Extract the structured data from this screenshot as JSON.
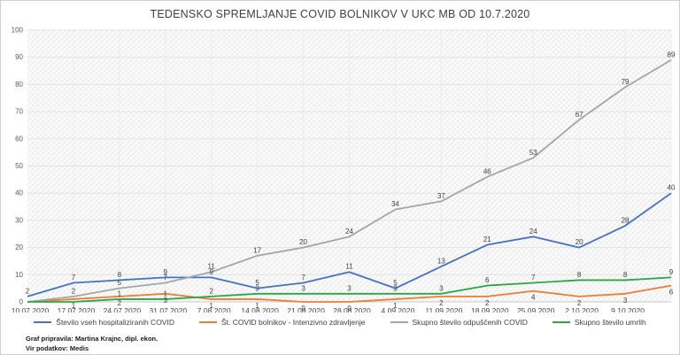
{
  "title": "TEDENSKO SPREMLJANJE COVID BOLNIKOV V UKC MB OD 10.7.2020",
  "footer": {
    "line1": "Graf pripravila: Martina Krajnc, dipl. ekon.",
    "line2": "Vir podatkov: Medis"
  },
  "colors": {
    "hospitalized": "#4472C4",
    "intensive": "#ED7D31",
    "discharged": "#A5A5A5",
    "deceased": "#2BA648",
    "grid": "#e3e3e3",
    "axis": "#c9c9c9",
    "tick_text": "#595959",
    "label_text": "#404040"
  },
  "chart_data": {
    "type": "line",
    "title": "TEDENSKO SPREMLJANJE COVID BOLNIKOV V UKC MB OD 10.7.2020",
    "categories": [
      "10.07.2020",
      "17.07.2020",
      "24.07.2020",
      "31.07.2020",
      "7.08.2020",
      "14.08.2020",
      "21.08.2020",
      "28.08.2020",
      "4.09.2020",
      "11.09.2020",
      "18.09.2020",
      "25.09.2020",
      "2.10.2020",
      "9.10.2020",
      ""
    ],
    "series": [
      {
        "name": "Število vseh hospitaliziranih COVID",
        "color": "#4472C4",
        "values": [
          2,
          7,
          8,
          9,
          9,
          5,
          7,
          11,
          5,
          13,
          21,
          24,
          20,
          28,
          40
        ],
        "shown_labels": [
          2,
          7,
          8,
          9,
          9,
          5,
          7,
          11,
          5,
          13,
          21,
          24,
          20,
          28,
          40
        ],
        "label_side": "above"
      },
      {
        "name": "Št. COVID bolnikov - Intenzivno zdravljenje",
        "color": "#ED7D31",
        "values": [
          0,
          1,
          2,
          3,
          1,
          1,
          0,
          0,
          1,
          2,
          2,
          4,
          2,
          3,
          6
        ],
        "shown_labels": [
          null,
          1,
          2,
          3,
          1,
          1,
          0,
          0,
          1,
          2,
          2,
          4,
          2,
          3,
          6
        ],
        "label_side": "below"
      },
      {
        "name": "Skupno število odpuščenih COVID",
        "color": "#A5A5A5",
        "values": [
          0,
          2,
          5,
          7,
          11,
          17,
          20,
          24,
          34,
          37,
          46,
          53,
          67,
          79,
          89
        ],
        "shown_labels": [
          null,
          2,
          5,
          7,
          11,
          17,
          20,
          24,
          34,
          37,
          46,
          53,
          67,
          79,
          89
        ],
        "label_side": "above"
      },
      {
        "name": "Skupno število umrlih",
        "color": "#2BA648",
        "values": [
          0,
          0,
          1,
          1,
          2,
          3,
          3,
          3,
          3,
          3,
          6,
          7,
          8,
          8,
          9
        ],
        "shown_labels": [
          null,
          null,
          1,
          1,
          2,
          3,
          3,
          3,
          3,
          3,
          6,
          7,
          8,
          8,
          9
        ],
        "label_side": "above"
      }
    ],
    "ylim": [
      0,
      100
    ],
    "ytick_step": 10,
    "ytick_labels": [
      "0",
      "10",
      "20",
      "30",
      "40",
      "50",
      "60",
      "70",
      "80",
      "90",
      "100"
    ],
    "xlabel": "",
    "ylabel": "",
    "grid": true,
    "legend_position": "bottom",
    "data_labels": true,
    "plot_fill": "hatched"
  }
}
